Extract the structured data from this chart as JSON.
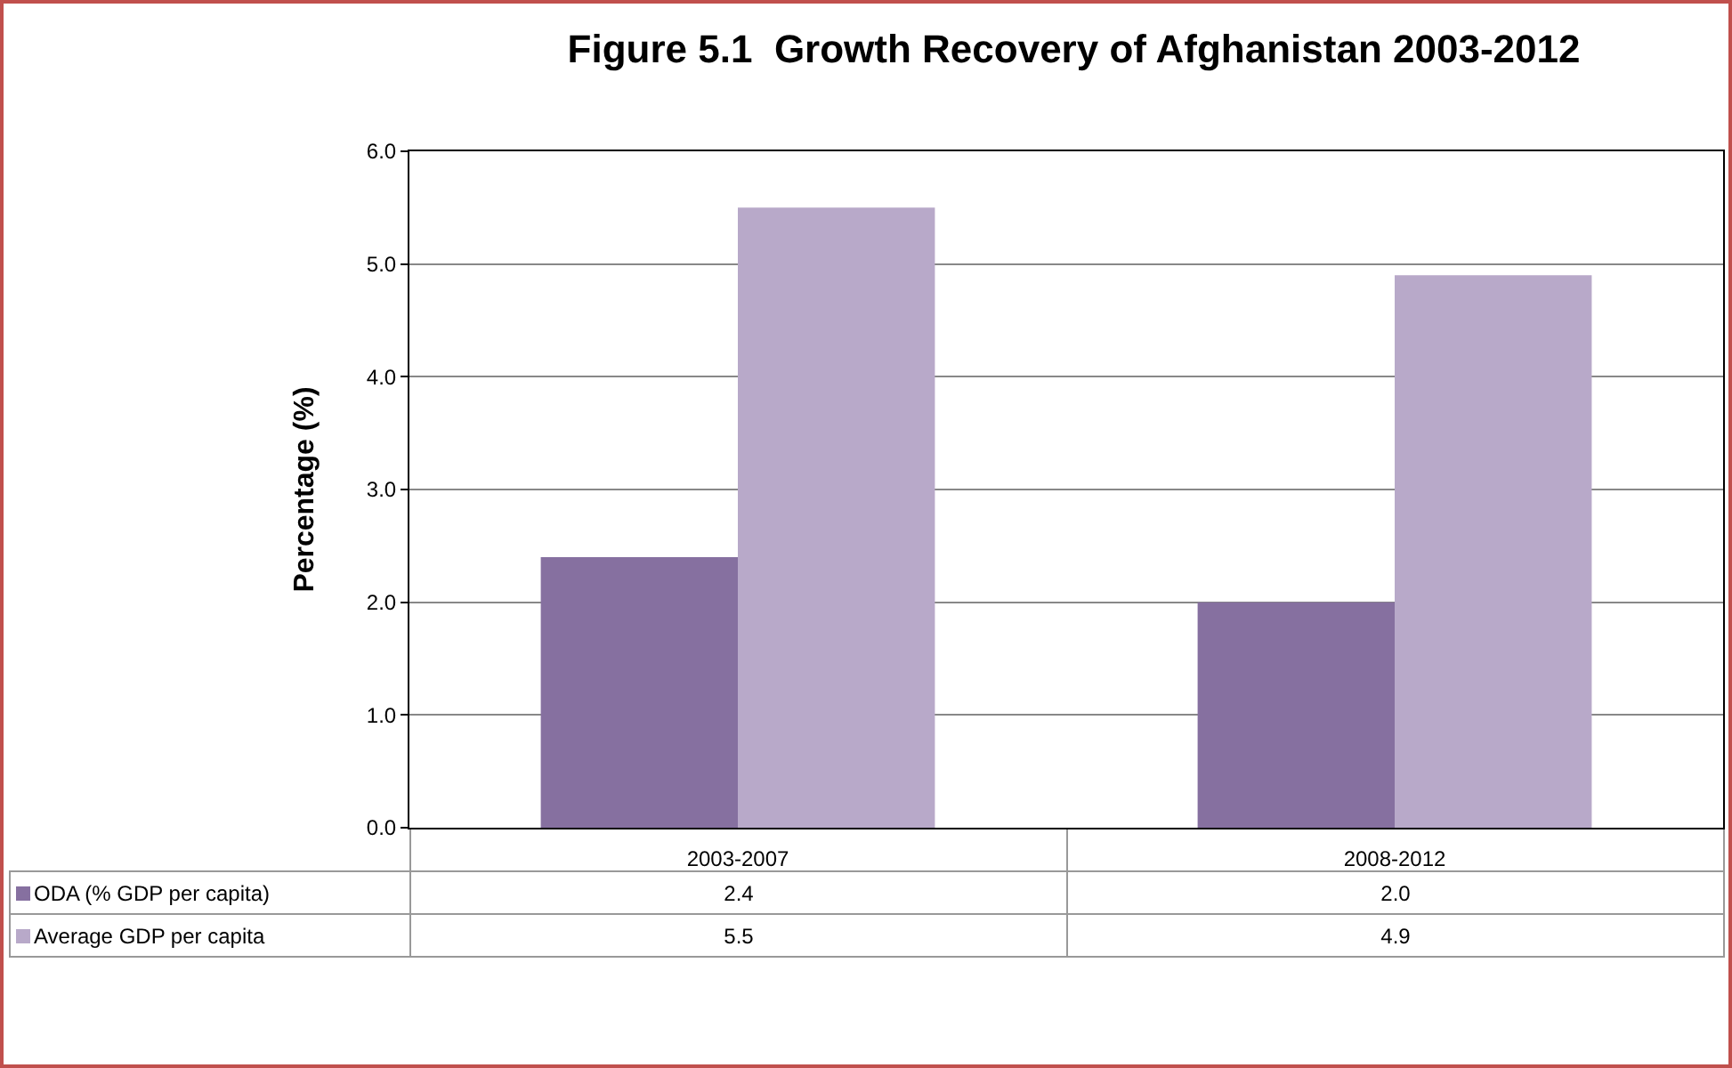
{
  "chart_data": {
    "type": "bar",
    "title": "Figure 5.1  Growth Recovery of Afghanistan 2003-2012",
    "ylabel": "Percentage (%)",
    "categories": [
      "2003-2007",
      "2008-2012"
    ],
    "series": [
      {
        "name": "ODA (% GDP per capita)",
        "color": "#8670a0",
        "values": [
          2.4,
          2.0
        ],
        "value_labels": [
          "2.4",
          "2.0"
        ]
      },
      {
        "name": "Average GDP per capita",
        "color": "#b8a9c9",
        "values": [
          5.5,
          4.9
        ],
        "value_labels": [
          "5.5",
          "4.9"
        ]
      }
    ],
    "ylim": [
      0,
      6
    ],
    "yticks": [
      {
        "value": 0,
        "label": "0.0"
      },
      {
        "value": 1,
        "label": "1.0"
      },
      {
        "value": 2,
        "label": "2.0"
      },
      {
        "value": 3,
        "label": "3.0"
      },
      {
        "value": 4,
        "label": "4.0"
      },
      {
        "value": 5,
        "label": "5.0"
      },
      {
        "value": 6,
        "label": "6.0"
      }
    ],
    "grid": "y",
    "legend": "bottom"
  }
}
